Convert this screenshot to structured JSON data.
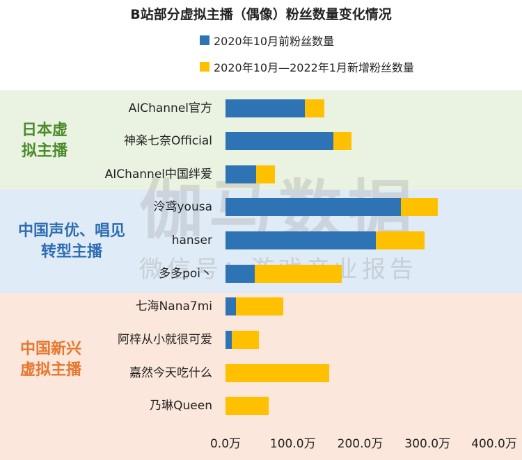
{
  "title": "B站部分虚拟主播（偶像）粉丝数量变化情况",
  "watermark": {
    "main": "伽马数据",
    "sub": "微信号：游戏产业报告"
  },
  "colors": {
    "series1": "#2E74B5",
    "series2": "#FFC000"
  },
  "groups": [
    {
      "label": "日本虚\n拟主播",
      "bg": "#EAF2E1",
      "color": "#4C8B2B"
    },
    {
      "label": "中国声优、唱见\n转型主播",
      "bg": "#DFEBF7",
      "color": "#2E6DB4"
    },
    {
      "label": "中国新兴\n虚拟主播",
      "bg": "#FBE7DB",
      "color": "#E8762D"
    }
  ],
  "chart_data": {
    "type": "bar",
    "orientation": "horizontal",
    "stacked": true,
    "title": "B站部分虚拟主播（偶像）粉丝数量变化情况",
    "categories": [
      "AIChannel官方",
      "神楽七奈Official",
      "AIChannel中国绊爱",
      "泠鸢yousa",
      "hanser",
      "多多poi丶",
      "七海Nana7mi",
      "阿梓从小就很可爱",
      "嘉然今天吃什么",
      "乃琳Queen"
    ],
    "series": [
      {
        "name": "2020年10月前粉丝数量",
        "values": [
          118,
          160,
          45,
          260,
          223,
          43,
          16,
          9,
          0,
          0
        ]
      },
      {
        "name": "2020年10月—2022年1月新增粉丝数量",
        "values": [
          29,
          27,
          28,
          55,
          73,
          130,
          70,
          41,
          154,
          64
        ]
      }
    ],
    "xlim": [
      0,
      400
    ],
    "xticks": [
      "0.0万",
      "100.0万",
      "200.0万",
      "300.0万",
      "400.0万"
    ],
    "legend_position": "top"
  }
}
